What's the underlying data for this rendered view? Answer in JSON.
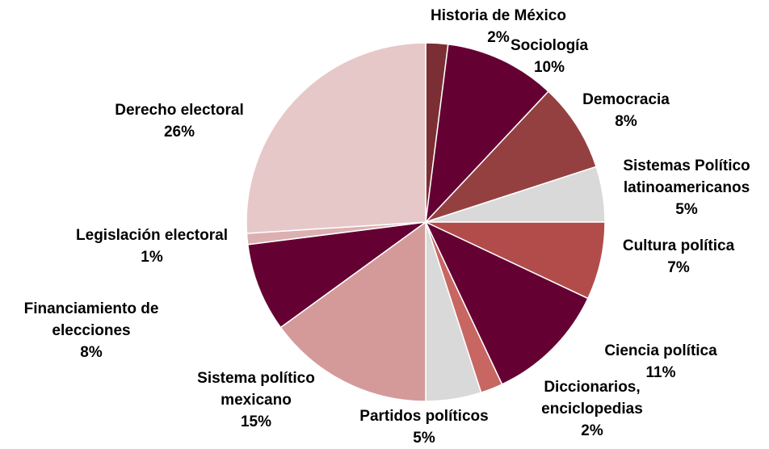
{
  "chart_data": {
    "type": "pie",
    "start_angle_deg": 0,
    "direction": "clockwise",
    "slices": [
      {
        "label_lines": [
          "Historia de México"
        ],
        "value_label": "2%",
        "value": 2,
        "color": "#7b2f35"
      },
      {
        "label_lines": [
          "Sociología"
        ],
        "value_label": "10%",
        "value": 10,
        "color": "#650033"
      },
      {
        "label_lines": [
          "Democracia"
        ],
        "value_label": "8%",
        "value": 8,
        "color": "#954040"
      },
      {
        "label_lines": [
          "Sistemas Político",
          "latinoamericanos"
        ],
        "value_label": "5%",
        "value": 5,
        "color": "#d9d9d9"
      },
      {
        "label_lines": [
          "Cultura política"
        ],
        "value_label": "7%",
        "value": 7,
        "color": "#b24c4a"
      },
      {
        "label_lines": [
          "Ciencia política"
        ],
        "value_label": "11%",
        "value": 11,
        "color": "#650033"
      },
      {
        "label_lines": [
          "Diccionarios,",
          "enciclopedias"
        ],
        "value_label": "2%",
        "value": 2,
        "color": "#c86662"
      },
      {
        "label_lines": [
          "Partidos políticos"
        ],
        "value_label": "5%",
        "value": 5,
        "color": "#d9d9d9"
      },
      {
        "label_lines": [
          "Sistema político",
          "mexicano"
        ],
        "value_label": "15%",
        "value": 15,
        "color": "#d49a9a"
      },
      {
        "label_lines": [
          "Financiamiento de",
          "elecciones"
        ],
        "value_label": "8%",
        "value": 8,
        "color": "#650033"
      },
      {
        "label_lines": [
          "Legislación electoral"
        ],
        "value_label": "1%",
        "value": 1,
        "color": "#dcb0b1"
      },
      {
        "label_lines": [
          "Derecho electoral"
        ],
        "value_label": "26%",
        "value": 26,
        "color": "#e6c8c9"
      }
    ]
  }
}
